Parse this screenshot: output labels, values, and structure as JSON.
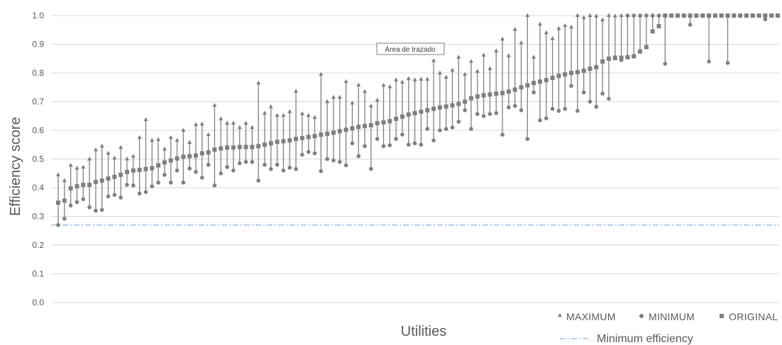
{
  "chart_data": {
    "type": "scatter",
    "title": "",
    "xlabel": "Utilities",
    "ylabel": "Efficiency score",
    "ylim": [
      0.0,
      1.0
    ],
    "yticks": [
      "0.0",
      "0.1",
      "0.2",
      "0.3",
      "0.4",
      "0.5",
      "0.6",
      "0.7",
      "0.8",
      "0.9",
      "1.0"
    ],
    "grid": "horizontal",
    "legend_position": "bottom-right",
    "annotation": "Área de trazado",
    "colors": {
      "marker": "#7f7f7f",
      "gridline": "#d9d9d9",
      "threshold": "#8db4e2"
    },
    "series": [
      {
        "name": "MAXIMUM",
        "marker": "triangle"
      },
      {
        "name": "MINIMUM",
        "marker": "circle"
      },
      {
        "name": "ORIGINAL",
        "marker": "square"
      }
    ],
    "reference_line": {
      "name": "Minimum efficiency",
      "value": 0.27
    },
    "original": [
      0.348,
      0.355,
      0.398,
      0.405,
      0.41,
      0.41,
      0.42,
      0.425,
      0.432,
      0.438,
      0.445,
      0.455,
      0.46,
      0.462,
      0.465,
      0.468,
      0.478,
      0.488,
      0.495,
      0.502,
      0.508,
      0.51,
      0.512,
      0.52,
      0.523,
      0.533,
      0.537,
      0.54,
      0.54,
      0.542,
      0.542,
      0.542,
      0.545,
      0.55,
      0.555,
      0.56,
      0.562,
      0.565,
      0.57,
      0.573,
      0.577,
      0.58,
      0.585,
      0.588,
      0.592,
      0.597,
      0.602,
      0.607,
      0.612,
      0.615,
      0.618,
      0.625,
      0.628,
      0.632,
      0.64,
      0.648,
      0.655,
      0.66,
      0.665,
      0.67,
      0.675,
      0.68,
      0.683,
      0.687,
      0.692,
      0.7,
      0.712,
      0.718,
      0.722,
      0.725,
      0.728,
      0.73,
      0.735,
      0.742,
      0.75,
      0.757,
      0.765,
      0.77,
      0.775,
      0.783,
      0.79,
      0.795,
      0.8,
      0.803,
      0.808,
      0.815,
      0.82,
      0.84,
      0.85,
      0.852,
      0.853,
      0.855,
      0.858,
      0.875,
      0.89,
      0.945,
      0.963,
      1.0,
      1.0,
      1.0,
      1.0,
      1.0,
      1.0,
      1.0,
      1.0,
      1.0,
      1.0,
      1.0,
      1.0,
      1.0,
      1.0,
      1.0,
      1.0,
      1.0,
      1.0,
      1.0
    ],
    "maximum": [
      0.445,
      0.425,
      0.478,
      0.468,
      0.472,
      0.5,
      0.532,
      0.545,
      0.52,
      0.503,
      0.54,
      0.5,
      0.51,
      0.575,
      0.637,
      0.565,
      0.568,
      0.535,
      0.575,
      0.565,
      0.6,
      0.558,
      0.62,
      0.622,
      0.585,
      0.687,
      0.64,
      0.625,
      0.625,
      0.61,
      0.625,
      0.61,
      0.765,
      0.66,
      0.682,
      0.652,
      0.652,
      0.665,
      0.736,
      0.658,
      0.652,
      0.645,
      0.795,
      0.7,
      0.715,
      0.715,
      0.77,
      0.695,
      0.758,
      0.735,
      0.685,
      0.705,
      0.757,
      0.752,
      0.776,
      0.768,
      0.78,
      0.776,
      0.778,
      0.778,
      0.843,
      0.8,
      0.785,
      0.81,
      0.855,
      0.795,
      0.84,
      0.806,
      0.862,
      0.815,
      0.877,
      0.918,
      0.86,
      0.952,
      0.905,
      1.0,
      0.855,
      0.97,
      0.94,
      0.92,
      0.955,
      0.965,
      0.96,
      1.0,
      0.993,
      1.0,
      0.998,
      0.985,
      1.0,
      0.998,
      1.0,
      1.0,
      1.0,
      1.0,
      1.0,
      1.0,
      1.0,
      1.0,
      1.0,
      1.0,
      1.0,
      1.0,
      1.0,
      1.0,
      1.0,
      1.0,
      1.0,
      1.0,
      1.0,
      1.0,
      1.0,
      1.0,
      1.0,
      1.0,
      1.0,
      1.0
    ],
    "minimum": [
      0.27,
      0.292,
      0.338,
      0.35,
      0.36,
      0.332,
      0.32,
      0.323,
      0.37,
      0.375,
      0.366,
      0.41,
      0.408,
      0.38,
      0.385,
      0.405,
      0.418,
      0.445,
      0.418,
      0.46,
      0.418,
      0.467,
      0.455,
      0.435,
      0.48,
      0.408,
      0.45,
      0.472,
      0.46,
      0.485,
      0.49,
      0.49,
      0.425,
      0.48,
      0.465,
      0.48,
      0.46,
      0.47,
      0.465,
      0.515,
      0.525,
      0.52,
      0.458,
      0.5,
      0.495,
      0.49,
      0.478,
      0.555,
      0.51,
      0.545,
      0.466,
      0.57,
      0.545,
      0.548,
      0.57,
      0.585,
      0.55,
      0.555,
      0.55,
      0.605,
      0.565,
      0.6,
      0.605,
      0.61,
      0.63,
      0.67,
      0.605,
      0.657,
      0.65,
      0.657,
      0.66,
      0.585,
      0.68,
      0.685,
      0.67,
      0.57,
      0.732,
      0.635,
      0.642,
      0.675,
      0.668,
      0.675,
      0.755,
      0.668,
      0.732,
      0.7,
      0.682,
      0.728,
      0.71,
      0.855,
      0.845,
      1.0,
      1.0,
      1.0,
      1.0,
      1.0,
      1.0,
      0.832,
      1.0,
      1.0,
      1.0,
      0.968,
      1.0,
      1.0,
      0.84,
      1.0,
      1.0,
      0.835,
      1.0,
      1.0,
      1.0,
      1.0,
      1.0,
      0.987,
      1.0,
      1.0
    ]
  }
}
